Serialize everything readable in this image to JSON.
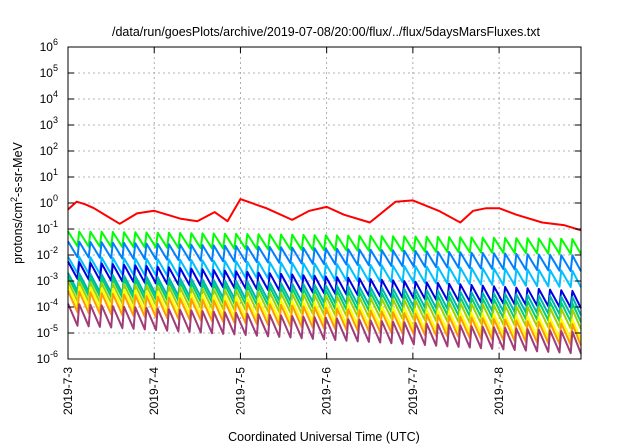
{
  "chart_data": {
    "type": "line",
    "title": "/data/run/goesPlots/archive/2019-07-08/20:00/flux/../flux/5daysMarsFluxes.txt",
    "xlabel": "Coordinated Universal Time (UTC)",
    "ylabel_parts": [
      "protons/cm",
      "2",
      "-s-sr-MeV"
    ],
    "y_scale": "log",
    "ylim_exp": [
      -6,
      6
    ],
    "y_tick_base": "10",
    "y_tick_exponents": [
      "6",
      "5",
      "4",
      "3",
      "2",
      "1",
      "0",
      "-1",
      "-2",
      "-3",
      "-4",
      "-5",
      "-6"
    ],
    "x_range_days": [
      0,
      5.95
    ],
    "x_tick_labels": [
      "2019-7-3",
      "2019-7-4",
      "2019-7-5",
      "2019-7-6",
      "2019-7-7",
      "2019-7-8"
    ],
    "x_tick_days": [
      0,
      1,
      2,
      3,
      4,
      5
    ],
    "grid": true,
    "legend": "none",
    "series": [
      {
        "color": "#ff0000",
        "sawtooth": false,
        "x": [
          0.0,
          0.1,
          0.2,
          0.3,
          0.45,
          0.6,
          0.8,
          1.0,
          1.15,
          1.3,
          1.5,
          1.7,
          1.85,
          2.0,
          2.3,
          2.6,
          2.8,
          3.0,
          3.2,
          3.5,
          3.8,
          4.0,
          4.3,
          4.55,
          4.7,
          4.85,
          5.0,
          5.2,
          5.5,
          5.75,
          5.95
        ],
        "y_log10": [
          -0.25,
          0.05,
          -0.05,
          -0.2,
          -0.5,
          -0.8,
          -0.4,
          -0.3,
          -0.45,
          -0.6,
          -0.7,
          -0.35,
          -0.7,
          0.15,
          -0.2,
          -0.65,
          -0.3,
          -0.15,
          -0.45,
          -0.75,
          0.05,
          0.1,
          -0.3,
          -0.75,
          -0.3,
          -0.2,
          -0.2,
          -0.45,
          -0.75,
          -0.85,
          -1.05
        ]
      },
      {
        "color": "#00ff00",
        "sawtooth": true,
        "x": [
          0,
          5.95
        ],
        "y_log10": [
          -1.35,
          -1.65
        ]
      },
      {
        "color": "#0080ff",
        "sawtooth": true,
        "x": [
          0,
          5.95
        ],
        "y_log10": [
          -1.75,
          -2.3
        ]
      },
      {
        "color": "#00c0ff",
        "sawtooth": true,
        "x": [
          0,
          5.95
        ],
        "y_log10": [
          -2.35,
          -2.9
        ]
      },
      {
        "color": "#0000e0",
        "sawtooth": true,
        "x": [
          0,
          5.95
        ],
        "y_log10": [
          -2.55,
          -3.7
        ]
      },
      {
        "color": "#00b4b4",
        "sawtooth": true,
        "x": [
          0,
          5.95
        ],
        "y_log10": [
          -3.0,
          -3.95
        ]
      },
      {
        "color": "#00d070",
        "sawtooth": true,
        "x": [
          0,
          5.95
        ],
        "y_log10": [
          -3.15,
          -4.2
        ]
      },
      {
        "color": "#a0d000",
        "sawtooth": true,
        "x": [
          0,
          5.95
        ],
        "y_log10": [
          -3.35,
          -4.45
        ]
      },
      {
        "color": "#ffff00",
        "sawtooth": true,
        "x": [
          0,
          5.95
        ],
        "y_log10": [
          -3.55,
          -4.85
        ]
      },
      {
        "color": "#ff9a00",
        "sawtooth": true,
        "x": [
          0,
          5.95
        ],
        "y_log10": [
          -3.75,
          -5.05
        ]
      },
      {
        "color": "#a03c78",
        "sawtooth": true,
        "x": [
          0,
          5.95
        ],
        "y_log10": [
          -4.25,
          -5.35
        ]
      }
    ]
  }
}
